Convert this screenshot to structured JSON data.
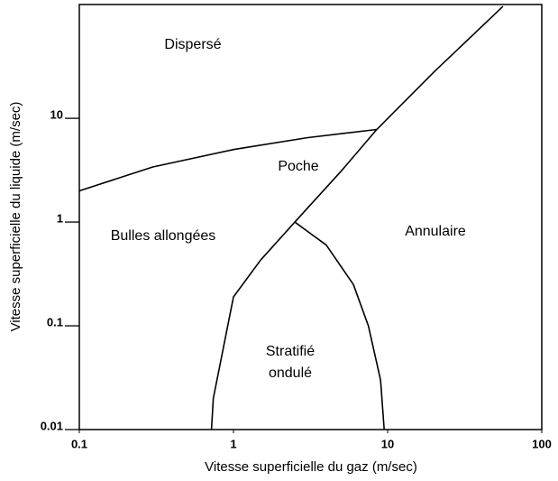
{
  "chart_data": {
    "type": "line",
    "xlabel": "Vitesse superficielle du gaz (m/sec)",
    "ylabel": "Vitesse superficielle du liquide (m/sec)",
    "xscale": "log",
    "yscale": "log",
    "xlim": [
      0.1,
      100
    ],
    "ylim": [
      0.01,
      125
    ],
    "xticks": [
      0.1,
      1,
      10,
      100
    ],
    "yticks": [
      0.01,
      0.1,
      1,
      10
    ],
    "annotations": [
      "Dispersé",
      "Poche",
      "Bulles allongées",
      "Annulaire",
      "Stratifié",
      "ondulé"
    ],
    "series": [
      {
        "color": "#000000",
        "x": [
          0.1,
          0.3,
          1,
          3,
          8.5
        ],
        "values": [
          2,
          3.4,
          5,
          6.5,
          7.8
        ]
      },
      {
        "color": "#000000",
        "x": [
          0.72,
          0.74,
          1,
          1.5,
          2.5,
          5,
          8.5,
          20,
          56
        ],
        "values": [
          0.01,
          0.02,
          0.19,
          0.43,
          1,
          3.1,
          7.8,
          28,
          120
        ]
      },
      {
        "color": "#000000",
        "x": [
          2.5,
          4,
          6,
          7.5,
          9,
          9.5
        ],
        "values": [
          1,
          0.6,
          0.25,
          0.1,
          0.03,
          0.01
        ]
      }
    ]
  }
}
